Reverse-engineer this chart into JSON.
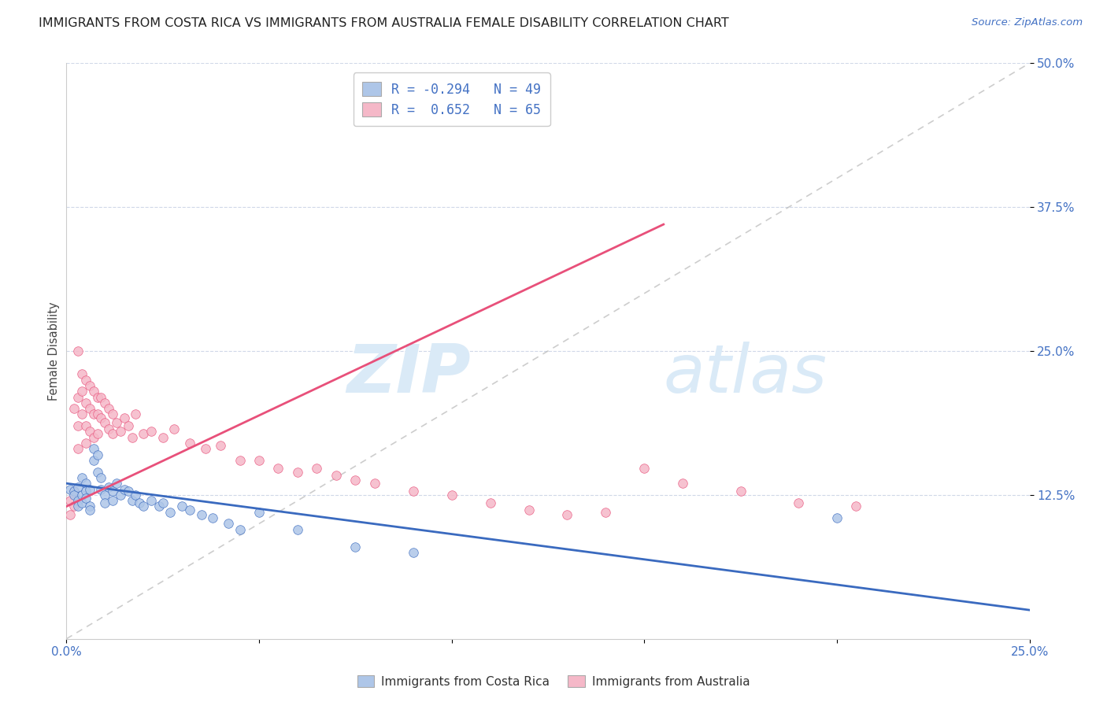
{
  "title": "IMMIGRANTS FROM COSTA RICA VS IMMIGRANTS FROM AUSTRALIA FEMALE DISABILITY CORRELATION CHART",
  "source": "Source: ZipAtlas.com",
  "ylabel": "Female Disability",
  "xlim": [
    0.0,
    0.25
  ],
  "ylim": [
    0.0,
    0.5
  ],
  "ytick_positions": [
    0.125,
    0.25,
    0.375,
    0.5
  ],
  "ytick_labels": [
    "12.5%",
    "25.0%",
    "37.5%",
    "50.0%"
  ],
  "color_blue": "#aec6e8",
  "color_pink": "#f5b8c8",
  "line_blue": "#3a6abf",
  "line_pink": "#e8507a",
  "line_diag": "#b8b8b8",
  "watermark_zip": "ZIP",
  "watermark_atlas": "atlas",
  "watermark_color": "#daeaf7",
  "title_fontsize": 11.5,
  "source_fontsize": 9.5,
  "costa_rica_x": [
    0.001,
    0.002,
    0.002,
    0.003,
    0.003,
    0.003,
    0.004,
    0.004,
    0.004,
    0.005,
    0.005,
    0.005,
    0.006,
    0.006,
    0.006,
    0.007,
    0.007,
    0.008,
    0.008,
    0.009,
    0.009,
    0.01,
    0.01,
    0.011,
    0.012,
    0.012,
    0.013,
    0.014,
    0.015,
    0.016,
    0.017,
    0.018,
    0.019,
    0.02,
    0.022,
    0.024,
    0.025,
    0.027,
    0.03,
    0.032,
    0.035,
    0.038,
    0.042,
    0.045,
    0.05,
    0.06,
    0.075,
    0.09,
    0.2
  ],
  "costa_rica_y": [
    0.13,
    0.128,
    0.125,
    0.132,
    0.12,
    0.115,
    0.14,
    0.125,
    0.118,
    0.135,
    0.128,
    0.122,
    0.13,
    0.115,
    0.112,
    0.165,
    0.155,
    0.16,
    0.145,
    0.14,
    0.13,
    0.125,
    0.118,
    0.132,
    0.128,
    0.12,
    0.135,
    0.125,
    0.13,
    0.128,
    0.12,
    0.125,
    0.118,
    0.115,
    0.12,
    0.115,
    0.118,
    0.11,
    0.115,
    0.112,
    0.108,
    0.105,
    0.1,
    0.095,
    0.11,
    0.095,
    0.08,
    0.075,
    0.105
  ],
  "australia_x": [
    0.001,
    0.001,
    0.002,
    0.002,
    0.002,
    0.003,
    0.003,
    0.003,
    0.003,
    0.004,
    0.004,
    0.004,
    0.005,
    0.005,
    0.005,
    0.005,
    0.006,
    0.006,
    0.006,
    0.007,
    0.007,
    0.007,
    0.008,
    0.008,
    0.008,
    0.009,
    0.009,
    0.01,
    0.01,
    0.011,
    0.011,
    0.012,
    0.012,
    0.013,
    0.014,
    0.015,
    0.016,
    0.017,
    0.018,
    0.02,
    0.022,
    0.025,
    0.028,
    0.032,
    0.036,
    0.04,
    0.045,
    0.05,
    0.055,
    0.06,
    0.065,
    0.07,
    0.075,
    0.08,
    0.09,
    0.1,
    0.11,
    0.12,
    0.13,
    0.14,
    0.15,
    0.16,
    0.175,
    0.19,
    0.205
  ],
  "australia_y": [
    0.12,
    0.108,
    0.2,
    0.128,
    0.115,
    0.25,
    0.21,
    0.185,
    0.165,
    0.23,
    0.215,
    0.195,
    0.225,
    0.205,
    0.185,
    0.17,
    0.22,
    0.2,
    0.18,
    0.215,
    0.195,
    0.175,
    0.21,
    0.195,
    0.178,
    0.21,
    0.192,
    0.205,
    0.188,
    0.2,
    0.182,
    0.195,
    0.178,
    0.188,
    0.18,
    0.192,
    0.185,
    0.175,
    0.195,
    0.178,
    0.18,
    0.175,
    0.182,
    0.17,
    0.165,
    0.168,
    0.155,
    0.155,
    0.148,
    0.145,
    0.148,
    0.142,
    0.138,
    0.135,
    0.128,
    0.125,
    0.118,
    0.112,
    0.108,
    0.11,
    0.148,
    0.135,
    0.128,
    0.118,
    0.115
  ],
  "cr_line_x0": 0.0,
  "cr_line_x1": 0.25,
  "cr_line_y0": 0.135,
  "cr_line_y1": 0.025,
  "au_line_x0": 0.0,
  "au_line_x1": 0.155,
  "au_line_y0": 0.115,
  "au_line_y1": 0.36
}
